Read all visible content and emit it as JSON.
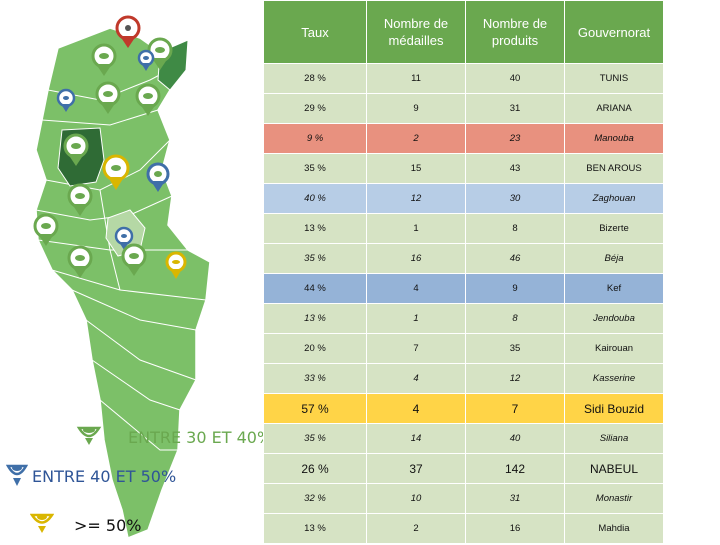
{
  "table": {
    "headers": [
      "Taux",
      "Nombre de\nmédailles",
      "Nombre de\nproduits",
      "Gouvernorat"
    ],
    "header_bg": "#6aa84f",
    "rows": [
      {
        "taux": "28 %",
        "medailles": "11",
        "produits": "40",
        "gouvernorat": "TUNIS",
        "bg": "#d6e3c4",
        "italic": false,
        "big": false
      },
      {
        "taux": "29 %",
        "medailles": "9",
        "produits": "31",
        "gouvernorat": "ARIANA",
        "bg": "#d6e3c4",
        "italic": false,
        "big": false
      },
      {
        "taux": "9 %",
        "medailles": "2",
        "produits": "23",
        "gouvernorat": "Manouba",
        "bg": "#e8917f",
        "italic": true,
        "big": false
      },
      {
        "taux": "35 %",
        "medailles": "15",
        "produits": "43",
        "gouvernorat": "BEN AROUS",
        "bg": "#d6e3c4",
        "italic": false,
        "big": false
      },
      {
        "taux": "40 %",
        "medailles": "12",
        "produits": "30",
        "gouvernorat": "Zaghouan",
        "bg": "#b7cde6",
        "italic": true,
        "big": false
      },
      {
        "taux": "13 %",
        "medailles": "1",
        "produits": "8",
        "gouvernorat": "Bizerte",
        "bg": "#d6e3c4",
        "italic": false,
        "big": false
      },
      {
        "taux": "35 %",
        "medailles": "16",
        "produits": "46",
        "gouvernorat": "Béja",
        "bg": "#d6e3c4",
        "italic": true,
        "big": false
      },
      {
        "taux": "44 %",
        "medailles": "4",
        "produits": "9",
        "gouvernorat": "Kef",
        "bg": "#95b3d7",
        "italic": false,
        "big": false
      },
      {
        "taux": "13 %",
        "medailles": "1",
        "produits": "8",
        "gouvernorat": "Jendouba",
        "bg": "#d6e3c4",
        "italic": true,
        "big": false
      },
      {
        "taux": "20 %",
        "medailles": "7",
        "produits": "35",
        "gouvernorat": "Kairouan",
        "bg": "#d6e3c4",
        "italic": false,
        "big": false
      },
      {
        "taux": "33 %",
        "medailles": "4",
        "produits": "12",
        "gouvernorat": "Kasserine",
        "bg": "#d6e3c4",
        "italic": true,
        "big": false
      },
      {
        "taux": "57 %",
        "medailles": "4",
        "produits": "7",
        "gouvernorat": "Sidi Bouzid",
        "bg": "#ffd447",
        "italic": false,
        "big": true
      },
      {
        "taux": "35 %",
        "medailles": "14",
        "produits": "40",
        "gouvernorat": "Siliana",
        "bg": "#d6e3c4",
        "italic": true,
        "big": false
      },
      {
        "taux": "26 %",
        "medailles": "37",
        "produits": "142",
        "gouvernorat": "NABEUL",
        "bg": "#d6e3c4",
        "italic": false,
        "big": true
      },
      {
        "taux": "32 %",
        "medailles": "10",
        "produits": "31",
        "gouvernorat": "Monastir",
        "bg": "#d6e3c4",
        "italic": true,
        "big": false
      },
      {
        "taux": "13 %",
        "medailles": "2",
        "produits": "16",
        "gouvernorat": "Mahdia",
        "bg": "#d6e3c4",
        "italic": false,
        "big": false
      }
    ]
  },
  "legend": [
    {
      "label": "ENTRE 30 ET 40%",
      "color": "#6aa84f",
      "text_color": "#6aa84f",
      "icon": "green-pin-icon"
    },
    {
      "label": "ENTRE 40 ET 50%",
      "color": "#3f6fa8",
      "text_color": "#2f5597",
      "icon": "blue-pin-icon"
    },
    {
      "label": ">= 50%",
      "color": "#d9b600",
      "text_color": "#111111",
      "icon": "yellow-pin-icon"
    }
  ],
  "map": {
    "base_color": "#7cc068",
    "dark_region_color": "#2f6b35",
    "light_region_color": "#b5d8a5",
    "pin_colors": {
      "green": "#6aa84f",
      "blue": "#3f6fa8",
      "yellow": "#d9b600",
      "red": "#c0392b"
    }
  }
}
